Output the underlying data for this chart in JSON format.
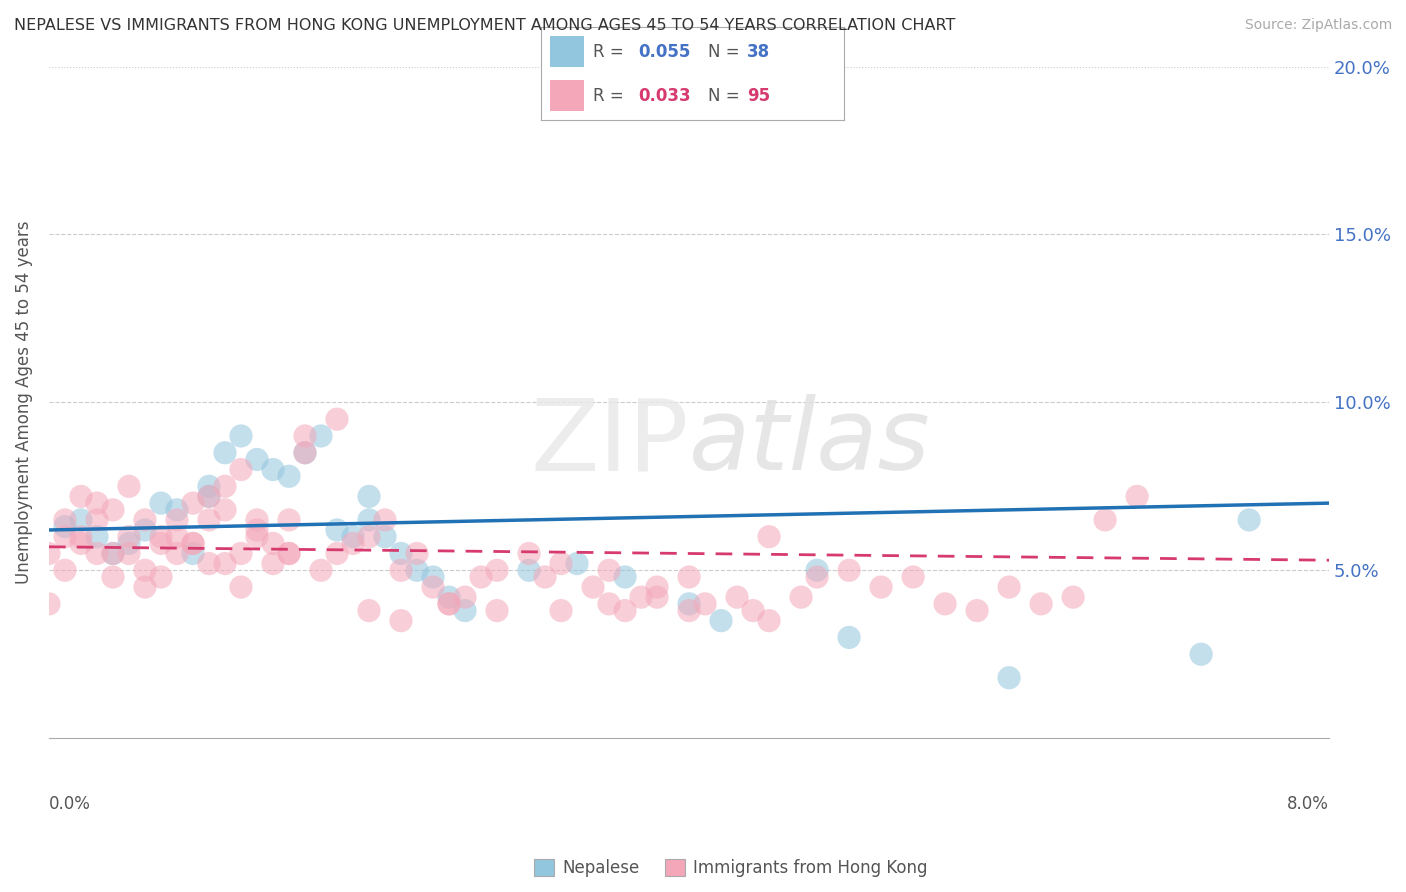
{
  "title": "NEPALESE VS IMMIGRANTS FROM HONG KONG UNEMPLOYMENT AMONG AGES 45 TO 54 YEARS CORRELATION CHART",
  "source": "Source: ZipAtlas.com",
  "ylabel": "Unemployment Among Ages 45 to 54 years",
  "xlim": [
    0.0,
    0.08
  ],
  "ylim": [
    0.0,
    0.2
  ],
  "yticks": [
    0.05,
    0.1,
    0.15,
    0.2
  ],
  "ytick_labels": [
    "5.0%",
    "10.0%",
    "15.0%",
    "20.0%"
  ],
  "watermark": "ZIPatlas",
  "nepalese_color": "#92c5de",
  "nepalese_trend_color": "#2171b5",
  "hk_color": "#f4a7b9",
  "hk_trend_color": "#d63a6e",
  "nepalese_R": 0.055,
  "nepalese_N": 38,
  "hk_R": 0.033,
  "hk_N": 95,
  "nepalese_x": [
    0.001,
    0.002,
    0.003,
    0.004,
    0.005,
    0.006,
    0.007,
    0.008,
    0.009,
    0.01,
    0.01,
    0.011,
    0.012,
    0.013,
    0.014,
    0.015,
    0.016,
    0.017,
    0.018,
    0.019,
    0.02,
    0.02,
    0.021,
    0.022,
    0.023,
    0.024,
    0.025,
    0.026,
    0.03,
    0.033,
    0.036,
    0.04,
    0.042,
    0.048,
    0.05,
    0.06,
    0.072,
    0.075
  ],
  "nepalese_y": [
    0.063,
    0.065,
    0.06,
    0.055,
    0.058,
    0.062,
    0.07,
    0.068,
    0.055,
    0.072,
    0.075,
    0.085,
    0.09,
    0.083,
    0.08,
    0.078,
    0.085,
    0.09,
    0.062,
    0.06,
    0.072,
    0.065,
    0.06,
    0.055,
    0.05,
    0.048,
    0.042,
    0.038,
    0.05,
    0.052,
    0.048,
    0.04,
    0.035,
    0.05,
    0.03,
    0.018,
    0.025,
    0.065
  ],
  "hk_x": [
    0.0,
    0.001,
    0.001,
    0.002,
    0.002,
    0.003,
    0.003,
    0.004,
    0.004,
    0.005,
    0.005,
    0.006,
    0.006,
    0.007,
    0.007,
    0.008,
    0.008,
    0.009,
    0.009,
    0.01,
    0.01,
    0.011,
    0.011,
    0.012,
    0.012,
    0.013,
    0.013,
    0.014,
    0.014,
    0.015,
    0.015,
    0.016,
    0.016,
    0.017,
    0.018,
    0.019,
    0.02,
    0.021,
    0.022,
    0.023,
    0.024,
    0.025,
    0.026,
    0.027,
    0.028,
    0.03,
    0.031,
    0.032,
    0.034,
    0.035,
    0.036,
    0.037,
    0.038,
    0.04,
    0.041,
    0.043,
    0.044,
    0.045,
    0.047,
    0.048,
    0.05,
    0.052,
    0.054,
    0.056,
    0.058,
    0.06,
    0.062,
    0.064,
    0.066,
    0.068,
    0.032,
    0.035,
    0.038,
    0.04,
    0.045,
    0.018,
    0.02,
    0.022,
    0.025,
    0.028,
    0.012,
    0.015,
    0.008,
    0.01,
    0.006,
    0.004,
    0.003,
    0.002,
    0.001,
    0.0,
    0.005,
    0.007,
    0.009,
    0.011,
    0.013
  ],
  "hk_y": [
    0.055,
    0.06,
    0.065,
    0.058,
    0.072,
    0.065,
    0.07,
    0.055,
    0.068,
    0.06,
    0.075,
    0.05,
    0.065,
    0.058,
    0.06,
    0.055,
    0.065,
    0.07,
    0.058,
    0.065,
    0.072,
    0.075,
    0.068,
    0.08,
    0.055,
    0.06,
    0.065,
    0.058,
    0.052,
    0.065,
    0.055,
    0.085,
    0.09,
    0.05,
    0.055,
    0.058,
    0.06,
    0.065,
    0.05,
    0.055,
    0.045,
    0.04,
    0.042,
    0.048,
    0.05,
    0.055,
    0.048,
    0.052,
    0.045,
    0.05,
    0.038,
    0.042,
    0.045,
    0.048,
    0.04,
    0.042,
    0.038,
    0.035,
    0.042,
    0.048,
    0.05,
    0.045,
    0.048,
    0.04,
    0.038,
    0.045,
    0.04,
    0.042,
    0.065,
    0.072,
    0.038,
    0.04,
    0.042,
    0.038,
    0.06,
    0.095,
    0.038,
    0.035,
    0.04,
    0.038,
    0.045,
    0.055,
    0.06,
    0.052,
    0.045,
    0.048,
    0.055,
    0.06,
    0.05,
    0.04,
    0.055,
    0.048,
    0.058,
    0.052,
    0.062
  ]
}
